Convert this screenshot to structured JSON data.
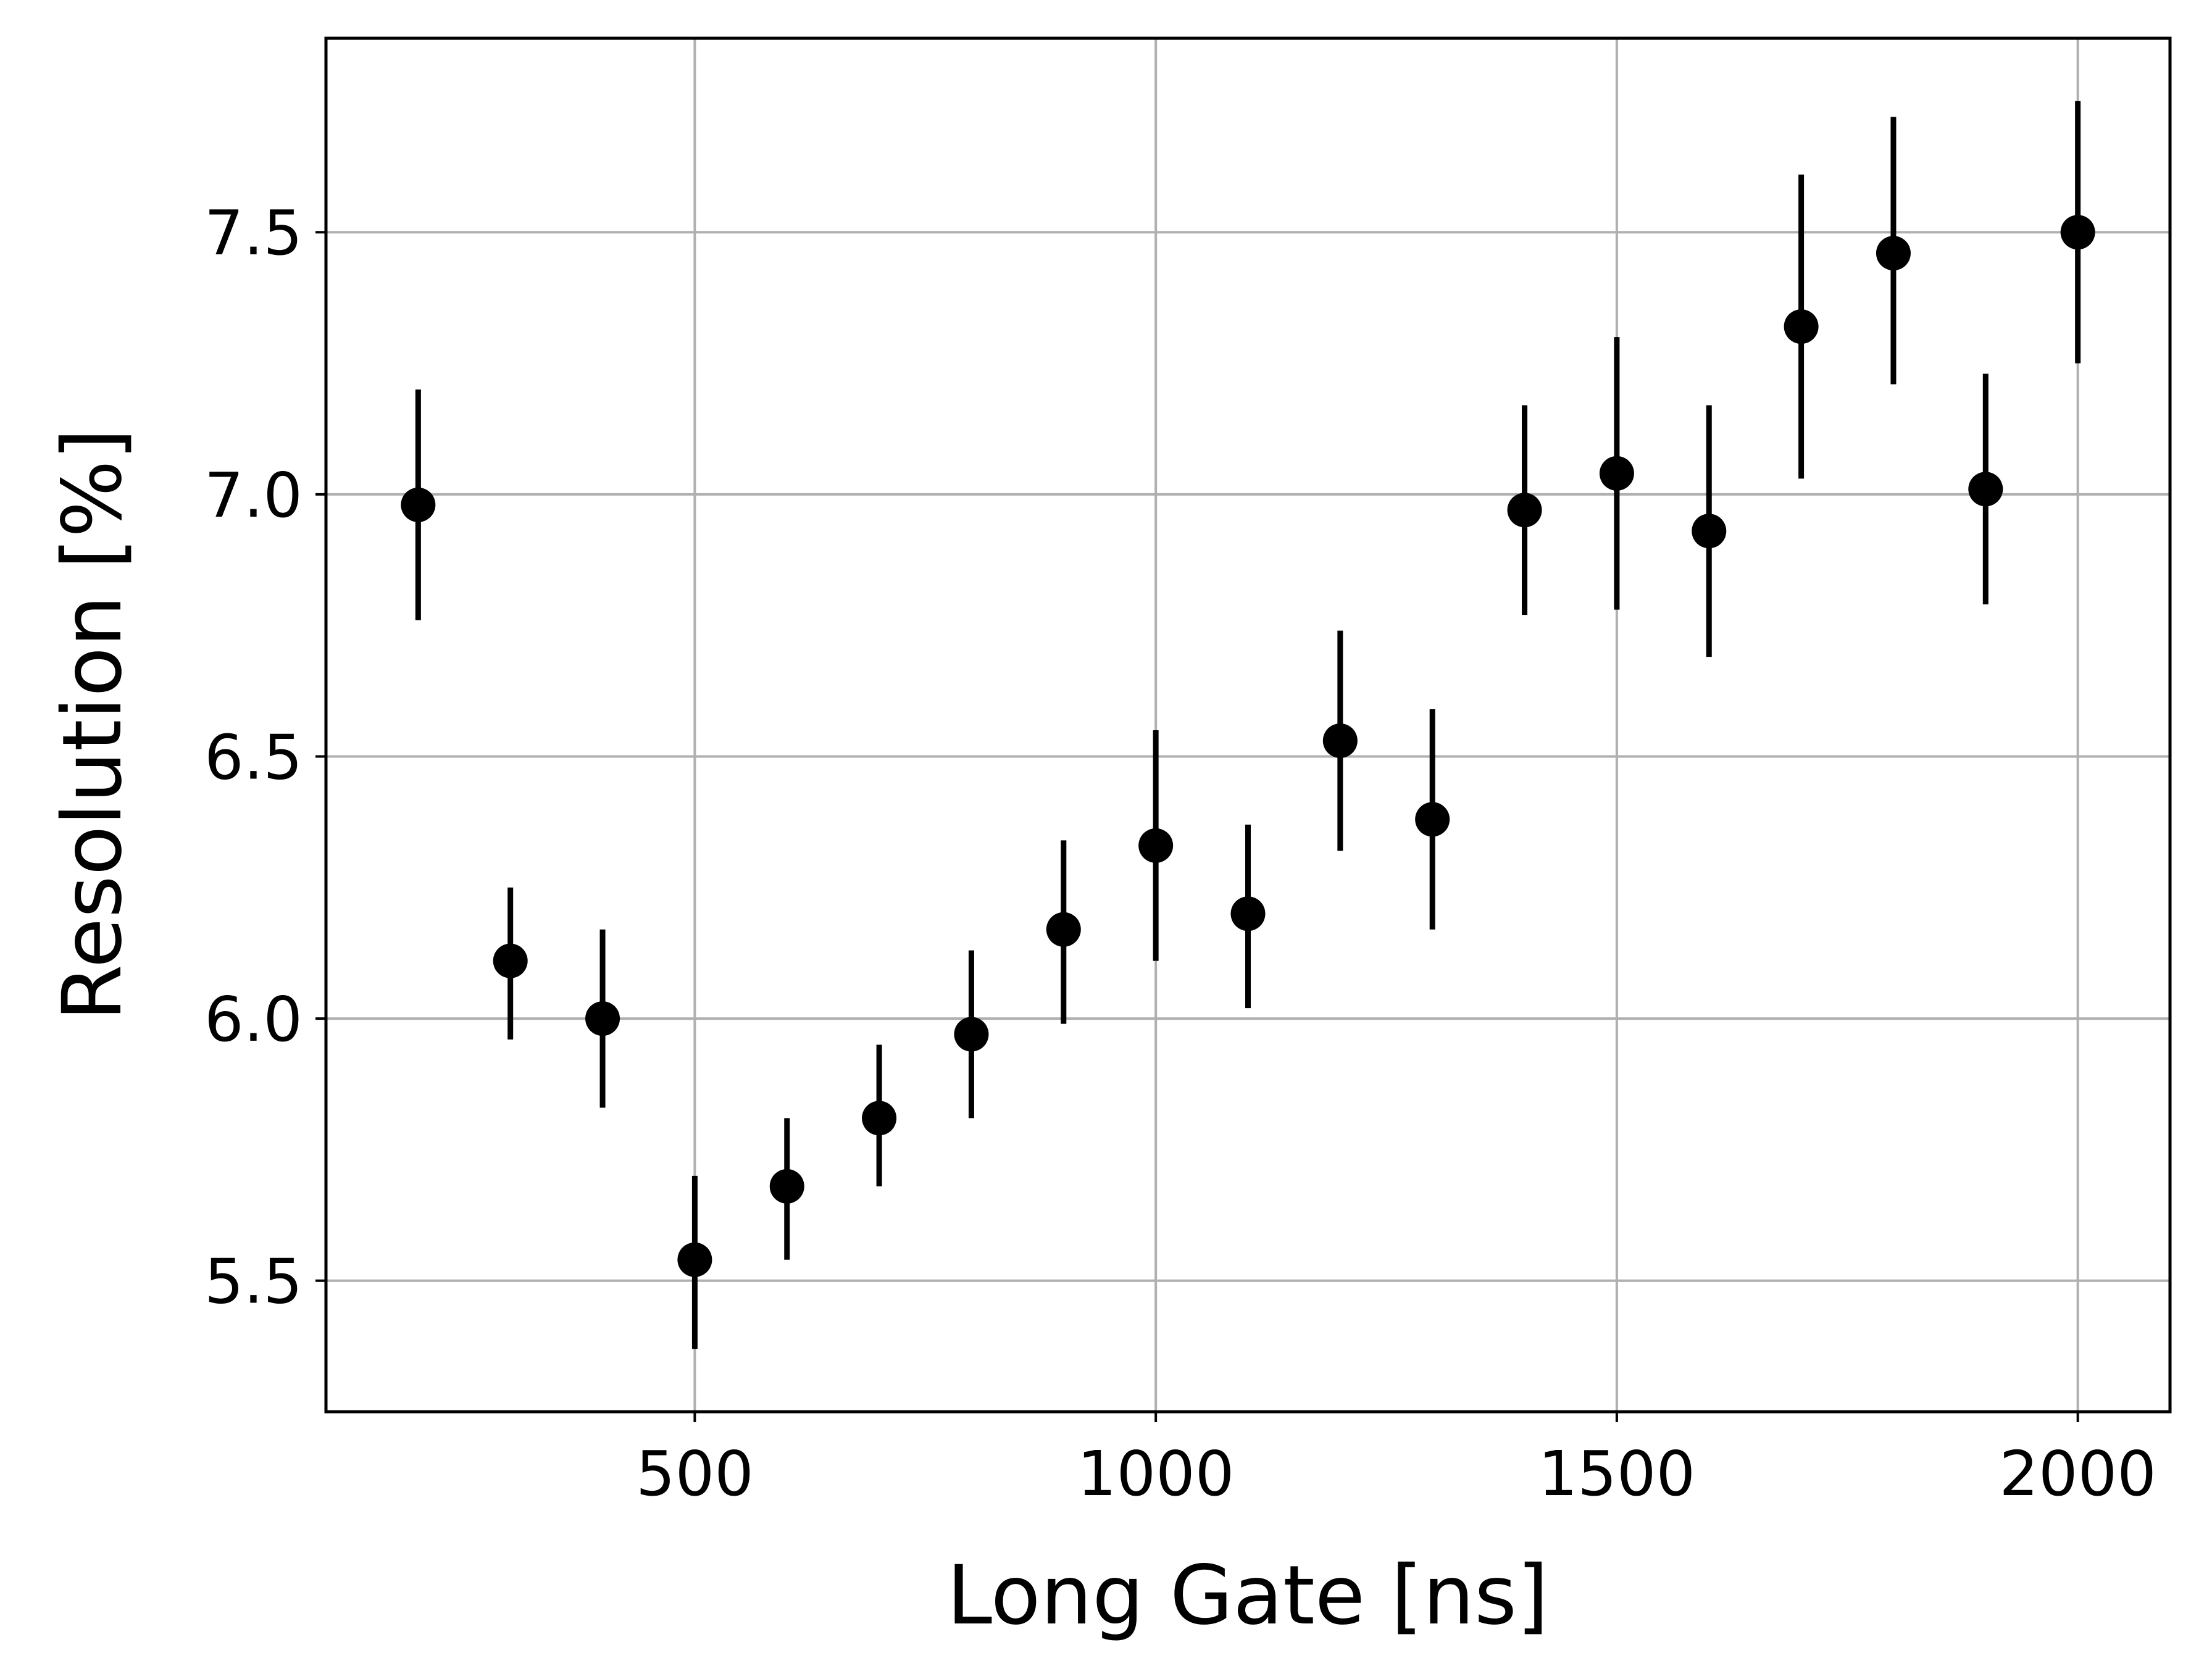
{
  "chart_data": {
    "type": "scatter",
    "xlabel": "Long Gate [ns]",
    "ylabel": "Resolution [%]",
    "xlim": [
      100,
      2100
    ],
    "ylim": [
      5.25,
      7.87
    ],
    "x_ticks": [
      500,
      1000,
      1500,
      2000
    ],
    "y_ticks": [
      5.5,
      6.0,
      6.5,
      7.0,
      7.5
    ],
    "x_tick_labels": [
      "500",
      "1000",
      "1500",
      "2000"
    ],
    "y_tick_labels": [
      "5.5",
      "6.0",
      "6.5",
      "7.0",
      "7.5"
    ],
    "grid": true,
    "marker_color": "#000000",
    "grid_color": "#b0b0b0",
    "series": [
      {
        "x": [
          200,
          300,
          400,
          500,
          600,
          700,
          800,
          900,
          1000,
          1100,
          1200,
          1300,
          1400,
          1500,
          1600,
          1700,
          1800,
          1900,
          2000
        ],
        "y": [
          6.98,
          6.11,
          6.0,
          5.54,
          5.68,
          5.81,
          5.97,
          6.17,
          6.33,
          6.2,
          6.53,
          6.38,
          6.97,
          7.04,
          6.93,
          7.32,
          7.46,
          7.01,
          7.5
        ],
        "yerr_low": [
          6.76,
          5.96,
          5.83,
          5.37,
          5.54,
          5.68,
          5.81,
          5.99,
          6.11,
          6.02,
          6.32,
          6.17,
          6.77,
          6.78,
          6.69,
          7.03,
          7.21,
          6.79,
          7.25
        ],
        "yerr_high": [
          7.2,
          6.25,
          6.17,
          5.7,
          5.81,
          5.95,
          6.13,
          6.34,
          6.55,
          6.37,
          6.74,
          6.59,
          7.17,
          7.3,
          7.17,
          7.61,
          7.72,
          7.23,
          7.75
        ]
      }
    ]
  }
}
